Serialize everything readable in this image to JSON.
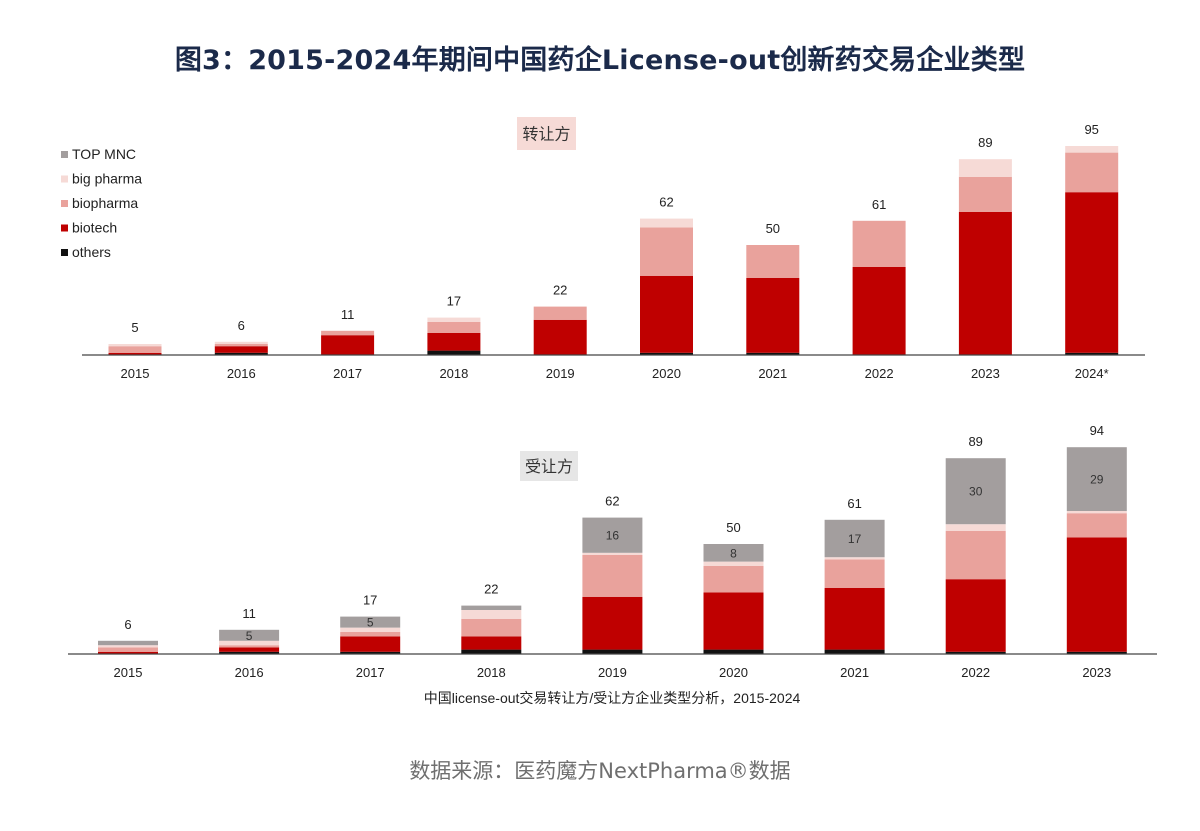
{
  "title": "图3：2015-2024年期间中国药企License-out创新药交易企业类型",
  "source": "数据来源：医药魔方NextPharma®数据",
  "caption": "中国license-out交易转让方/受让方企业类型分析，2015-2024",
  "legend": [
    {
      "name": "TOP MNC",
      "color": "#a39e9e"
    },
    {
      "name": "big pharma",
      "color": "#f6dad6"
    },
    {
      "name": "biopharma",
      "color": "#e9a29c"
    },
    {
      "name": "biotech",
      "color": "#bf0000"
    },
    {
      "name": "others",
      "color": "#111111"
    }
  ],
  "chart_data": [
    {
      "type": "bar",
      "stacked": true,
      "label": "转让方",
      "categories": [
        "2015",
        "2016",
        "2017",
        "2018",
        "2019",
        "2020",
        "2021",
        "2022",
        "2023",
        "2024*"
      ],
      "totals": [
        5,
        6,
        11,
        17,
        22,
        62,
        50,
        61,
        89,
        95
      ],
      "series": [
        {
          "name": "others",
          "values": [
            0,
            1,
            0,
            2,
            0,
            1,
            1,
            0,
            0,
            1
          ]
        },
        {
          "name": "biotech",
          "values": [
            1,
            3,
            9,
            8,
            16,
            35,
            34,
            40,
            65,
            73
          ]
        },
        {
          "name": "biopharma",
          "values": [
            3,
            1,
            2,
            5,
            6,
            22,
            15,
            21,
            16,
            18
          ]
        },
        {
          "name": "big pharma",
          "values": [
            1,
            1,
            0,
            2,
            0,
            4,
            0,
            0,
            8,
            3
          ]
        },
        {
          "name": "TOP MNC",
          "values": [
            0,
            0,
            0,
            0,
            0,
            0,
            0,
            0,
            0,
            0
          ]
        }
      ],
      "xlabel": "",
      "ylabel": "",
      "ylim": [
        0,
        100
      ],
      "legend": "top-left"
    },
    {
      "type": "bar",
      "stacked": true,
      "label": "受让方",
      "categories": [
        "2015",
        "2016",
        "2017",
        "2018",
        "2019",
        "2020",
        "2021",
        "2022",
        "2023"
      ],
      "totals": [
        6,
        11,
        17,
        22,
        62,
        50,
        61,
        89,
        94
      ],
      "series": [
        {
          "name": "others",
          "values": [
            0,
            1,
            1,
            2,
            2,
            2,
            2,
            1,
            1
          ]
        },
        {
          "name": "biotech",
          "values": [
            1,
            2,
            7,
            6,
            24,
            26,
            28,
            33,
            52
          ]
        },
        {
          "name": "biopharma",
          "values": [
            2,
            1,
            2,
            8,
            19,
            12,
            13,
            22,
            11
          ]
        },
        {
          "name": "big pharma",
          "values": [
            1,
            2,
            2,
            4,
            1,
            2,
            1,
            3,
            1
          ]
        },
        {
          "name": "TOP MNC",
          "values": [
            2,
            5,
            5,
            2,
            16,
            8,
            17,
            30,
            29
          ]
        }
      ],
      "xlabel": "",
      "ylabel": "",
      "ylim": [
        0,
        100
      ]
    }
  ]
}
